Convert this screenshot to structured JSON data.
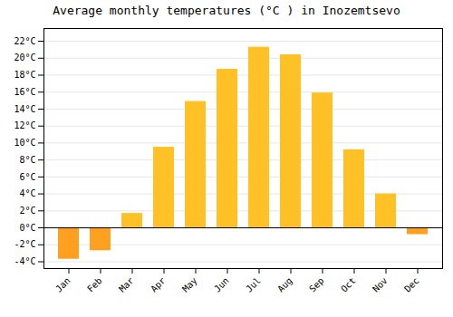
{
  "chart_data": {
    "type": "bar",
    "title": "Average monthly temperatures (°C ) in Inozemtsevo",
    "categories": [
      "Jan",
      "Feb",
      "Mar",
      "Apr",
      "May",
      "Jun",
      "Jul",
      "Aug",
      "Sep",
      "Oct",
      "Nov",
      "Dec"
    ],
    "values": [
      -3.7,
      -2.7,
      1.7,
      9.5,
      14.9,
      18.7,
      21.3,
      20.4,
      15.9,
      9.2,
      4.0,
      -0.8
    ],
    "colors": [
      "#FFA020",
      "#FFA020",
      "#FFC125",
      "#FFC125",
      "#FFC125",
      "#FFC125",
      "#FFC125",
      "#FFC125",
      "#FFC125",
      "#FFC125",
      "#FFC125",
      "#FFA020"
    ],
    "ylim": [
      -4.8,
      23.5
    ],
    "yticks": [
      {
        "value": -4,
        "label": "-4°C"
      },
      {
        "value": -2,
        "label": "-2°C"
      },
      {
        "value": 0,
        "label": "0°C"
      },
      {
        "value": 2,
        "label": "2°C"
      },
      {
        "value": 4,
        "label": "4°C"
      },
      {
        "value": 6,
        "label": "6°C"
      },
      {
        "value": 8,
        "label": "8°C"
      },
      {
        "value": 10,
        "label": "10°C"
      },
      {
        "value": 12,
        "label": "12°C"
      },
      {
        "value": 14,
        "label": "14°C"
      },
      {
        "value": 16,
        "label": "16°C"
      },
      {
        "value": 18,
        "label": "18°C"
      },
      {
        "value": 20,
        "label": "20°C"
      },
      {
        "value": 22,
        "label": "22°C"
      }
    ],
    "grid": true
  }
}
